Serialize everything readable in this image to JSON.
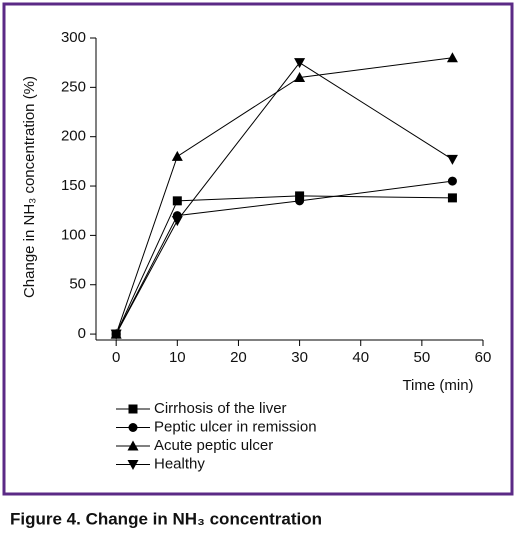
{
  "chart_data": {
    "type": "line",
    "ylabel": "Change in NH₃ concentration (%)",
    "xlabel": "Time (min)",
    "caption": "Figure 4. Change in NH₃ concentration",
    "x": [
      0,
      10,
      30,
      55
    ],
    "series": [
      {
        "name": "Cirrhosis of the liver",
        "color": "#000000",
        "marker": "square",
        "values": [
          0,
          135,
          140,
          138
        ]
      },
      {
        "name": "Peptic ulcer in remission",
        "color": "#000000",
        "marker": "circle",
        "values": [
          0,
          120,
          135,
          155
        ]
      },
      {
        "name": "Acute peptic ulcer",
        "color": "#000000",
        "marker": "triangle-up",
        "values": [
          0,
          180,
          260,
          280
        ]
      },
      {
        "name": "Healthy",
        "color": "#000000",
        "marker": "triangle-down",
        "values": [
          0,
          115,
          275,
          177
        ]
      }
    ],
    "xlim": [
      -3.3,
      60
    ],
    "xticks": [
      0,
      10,
      20,
      30,
      40,
      50,
      60
    ],
    "ylim": [
      -6,
      300
    ],
    "yticks": [
      0,
      50,
      100,
      150,
      200,
      250,
      300
    ]
  }
}
